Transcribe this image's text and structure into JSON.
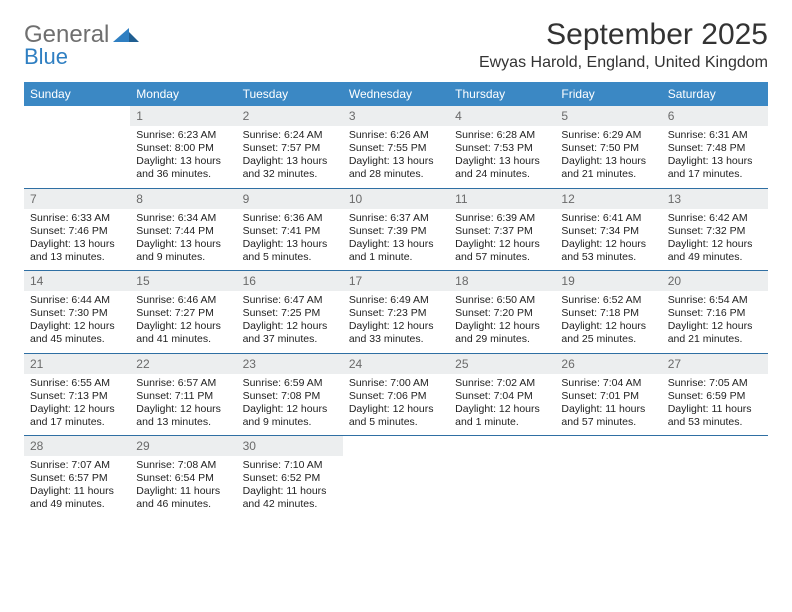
{
  "logo": {
    "word1": "General",
    "word2": "Blue",
    "mark_color": "#2f7fc2",
    "word1_color": "#6f6f6f"
  },
  "title": "September 2025",
  "location": "Ewyas Harold, England, United Kingdom",
  "colors": {
    "header_bg": "#3b88c4",
    "header_text": "#ffffff",
    "daynum_bg": "#eceeef",
    "daynum_text": "#6a6a6a",
    "week_divider": "#2f6fa3",
    "body_text": "#222222",
    "background": "#ffffff"
  },
  "typography": {
    "title_fontsize": 30,
    "location_fontsize": 16,
    "dow_fontsize": 12,
    "daynum_fontsize": 12,
    "body_fontsize": 10.5
  },
  "dow": [
    "Sunday",
    "Monday",
    "Tuesday",
    "Wednesday",
    "Thursday",
    "Friday",
    "Saturday"
  ],
  "weeks": [
    [
      null,
      {
        "d": "1",
        "sr": "6:23 AM",
        "ss": "8:00 PM",
        "dl": "13 hours and 36 minutes."
      },
      {
        "d": "2",
        "sr": "6:24 AM",
        "ss": "7:57 PM",
        "dl": "13 hours and 32 minutes."
      },
      {
        "d": "3",
        "sr": "6:26 AM",
        "ss": "7:55 PM",
        "dl": "13 hours and 28 minutes."
      },
      {
        "d": "4",
        "sr": "6:28 AM",
        "ss": "7:53 PM",
        "dl": "13 hours and 24 minutes."
      },
      {
        "d": "5",
        "sr": "6:29 AM",
        "ss": "7:50 PM",
        "dl": "13 hours and 21 minutes."
      },
      {
        "d": "6",
        "sr": "6:31 AM",
        "ss": "7:48 PM",
        "dl": "13 hours and 17 minutes."
      }
    ],
    [
      {
        "d": "7",
        "sr": "6:33 AM",
        "ss": "7:46 PM",
        "dl": "13 hours and 13 minutes."
      },
      {
        "d": "8",
        "sr": "6:34 AM",
        "ss": "7:44 PM",
        "dl": "13 hours and 9 minutes."
      },
      {
        "d": "9",
        "sr": "6:36 AM",
        "ss": "7:41 PM",
        "dl": "13 hours and 5 minutes."
      },
      {
        "d": "10",
        "sr": "6:37 AM",
        "ss": "7:39 PM",
        "dl": "13 hours and 1 minute."
      },
      {
        "d": "11",
        "sr": "6:39 AM",
        "ss": "7:37 PM",
        "dl": "12 hours and 57 minutes."
      },
      {
        "d": "12",
        "sr": "6:41 AM",
        "ss": "7:34 PM",
        "dl": "12 hours and 53 minutes."
      },
      {
        "d": "13",
        "sr": "6:42 AM",
        "ss": "7:32 PM",
        "dl": "12 hours and 49 minutes."
      }
    ],
    [
      {
        "d": "14",
        "sr": "6:44 AM",
        "ss": "7:30 PM",
        "dl": "12 hours and 45 minutes."
      },
      {
        "d": "15",
        "sr": "6:46 AM",
        "ss": "7:27 PM",
        "dl": "12 hours and 41 minutes."
      },
      {
        "d": "16",
        "sr": "6:47 AM",
        "ss": "7:25 PM",
        "dl": "12 hours and 37 minutes."
      },
      {
        "d": "17",
        "sr": "6:49 AM",
        "ss": "7:23 PM",
        "dl": "12 hours and 33 minutes."
      },
      {
        "d": "18",
        "sr": "6:50 AM",
        "ss": "7:20 PM",
        "dl": "12 hours and 29 minutes."
      },
      {
        "d": "19",
        "sr": "6:52 AM",
        "ss": "7:18 PM",
        "dl": "12 hours and 25 minutes."
      },
      {
        "d": "20",
        "sr": "6:54 AM",
        "ss": "7:16 PM",
        "dl": "12 hours and 21 minutes."
      }
    ],
    [
      {
        "d": "21",
        "sr": "6:55 AM",
        "ss": "7:13 PM",
        "dl": "12 hours and 17 minutes."
      },
      {
        "d": "22",
        "sr": "6:57 AM",
        "ss": "7:11 PM",
        "dl": "12 hours and 13 minutes."
      },
      {
        "d": "23",
        "sr": "6:59 AM",
        "ss": "7:08 PM",
        "dl": "12 hours and 9 minutes."
      },
      {
        "d": "24",
        "sr": "7:00 AM",
        "ss": "7:06 PM",
        "dl": "12 hours and 5 minutes."
      },
      {
        "d": "25",
        "sr": "7:02 AM",
        "ss": "7:04 PM",
        "dl": "12 hours and 1 minute."
      },
      {
        "d": "26",
        "sr": "7:04 AM",
        "ss": "7:01 PM",
        "dl": "11 hours and 57 minutes."
      },
      {
        "d": "27",
        "sr": "7:05 AM",
        "ss": "6:59 PM",
        "dl": "11 hours and 53 minutes."
      }
    ],
    [
      {
        "d": "28",
        "sr": "7:07 AM",
        "ss": "6:57 PM",
        "dl": "11 hours and 49 minutes."
      },
      {
        "d": "29",
        "sr": "7:08 AM",
        "ss": "6:54 PM",
        "dl": "11 hours and 46 minutes."
      },
      {
        "d": "30",
        "sr": "7:10 AM",
        "ss": "6:52 PM",
        "dl": "11 hours and 42 minutes."
      },
      null,
      null,
      null,
      null
    ]
  ],
  "labels": {
    "sunrise": "Sunrise:",
    "sunset": "Sunset:",
    "daylight": "Daylight:"
  }
}
